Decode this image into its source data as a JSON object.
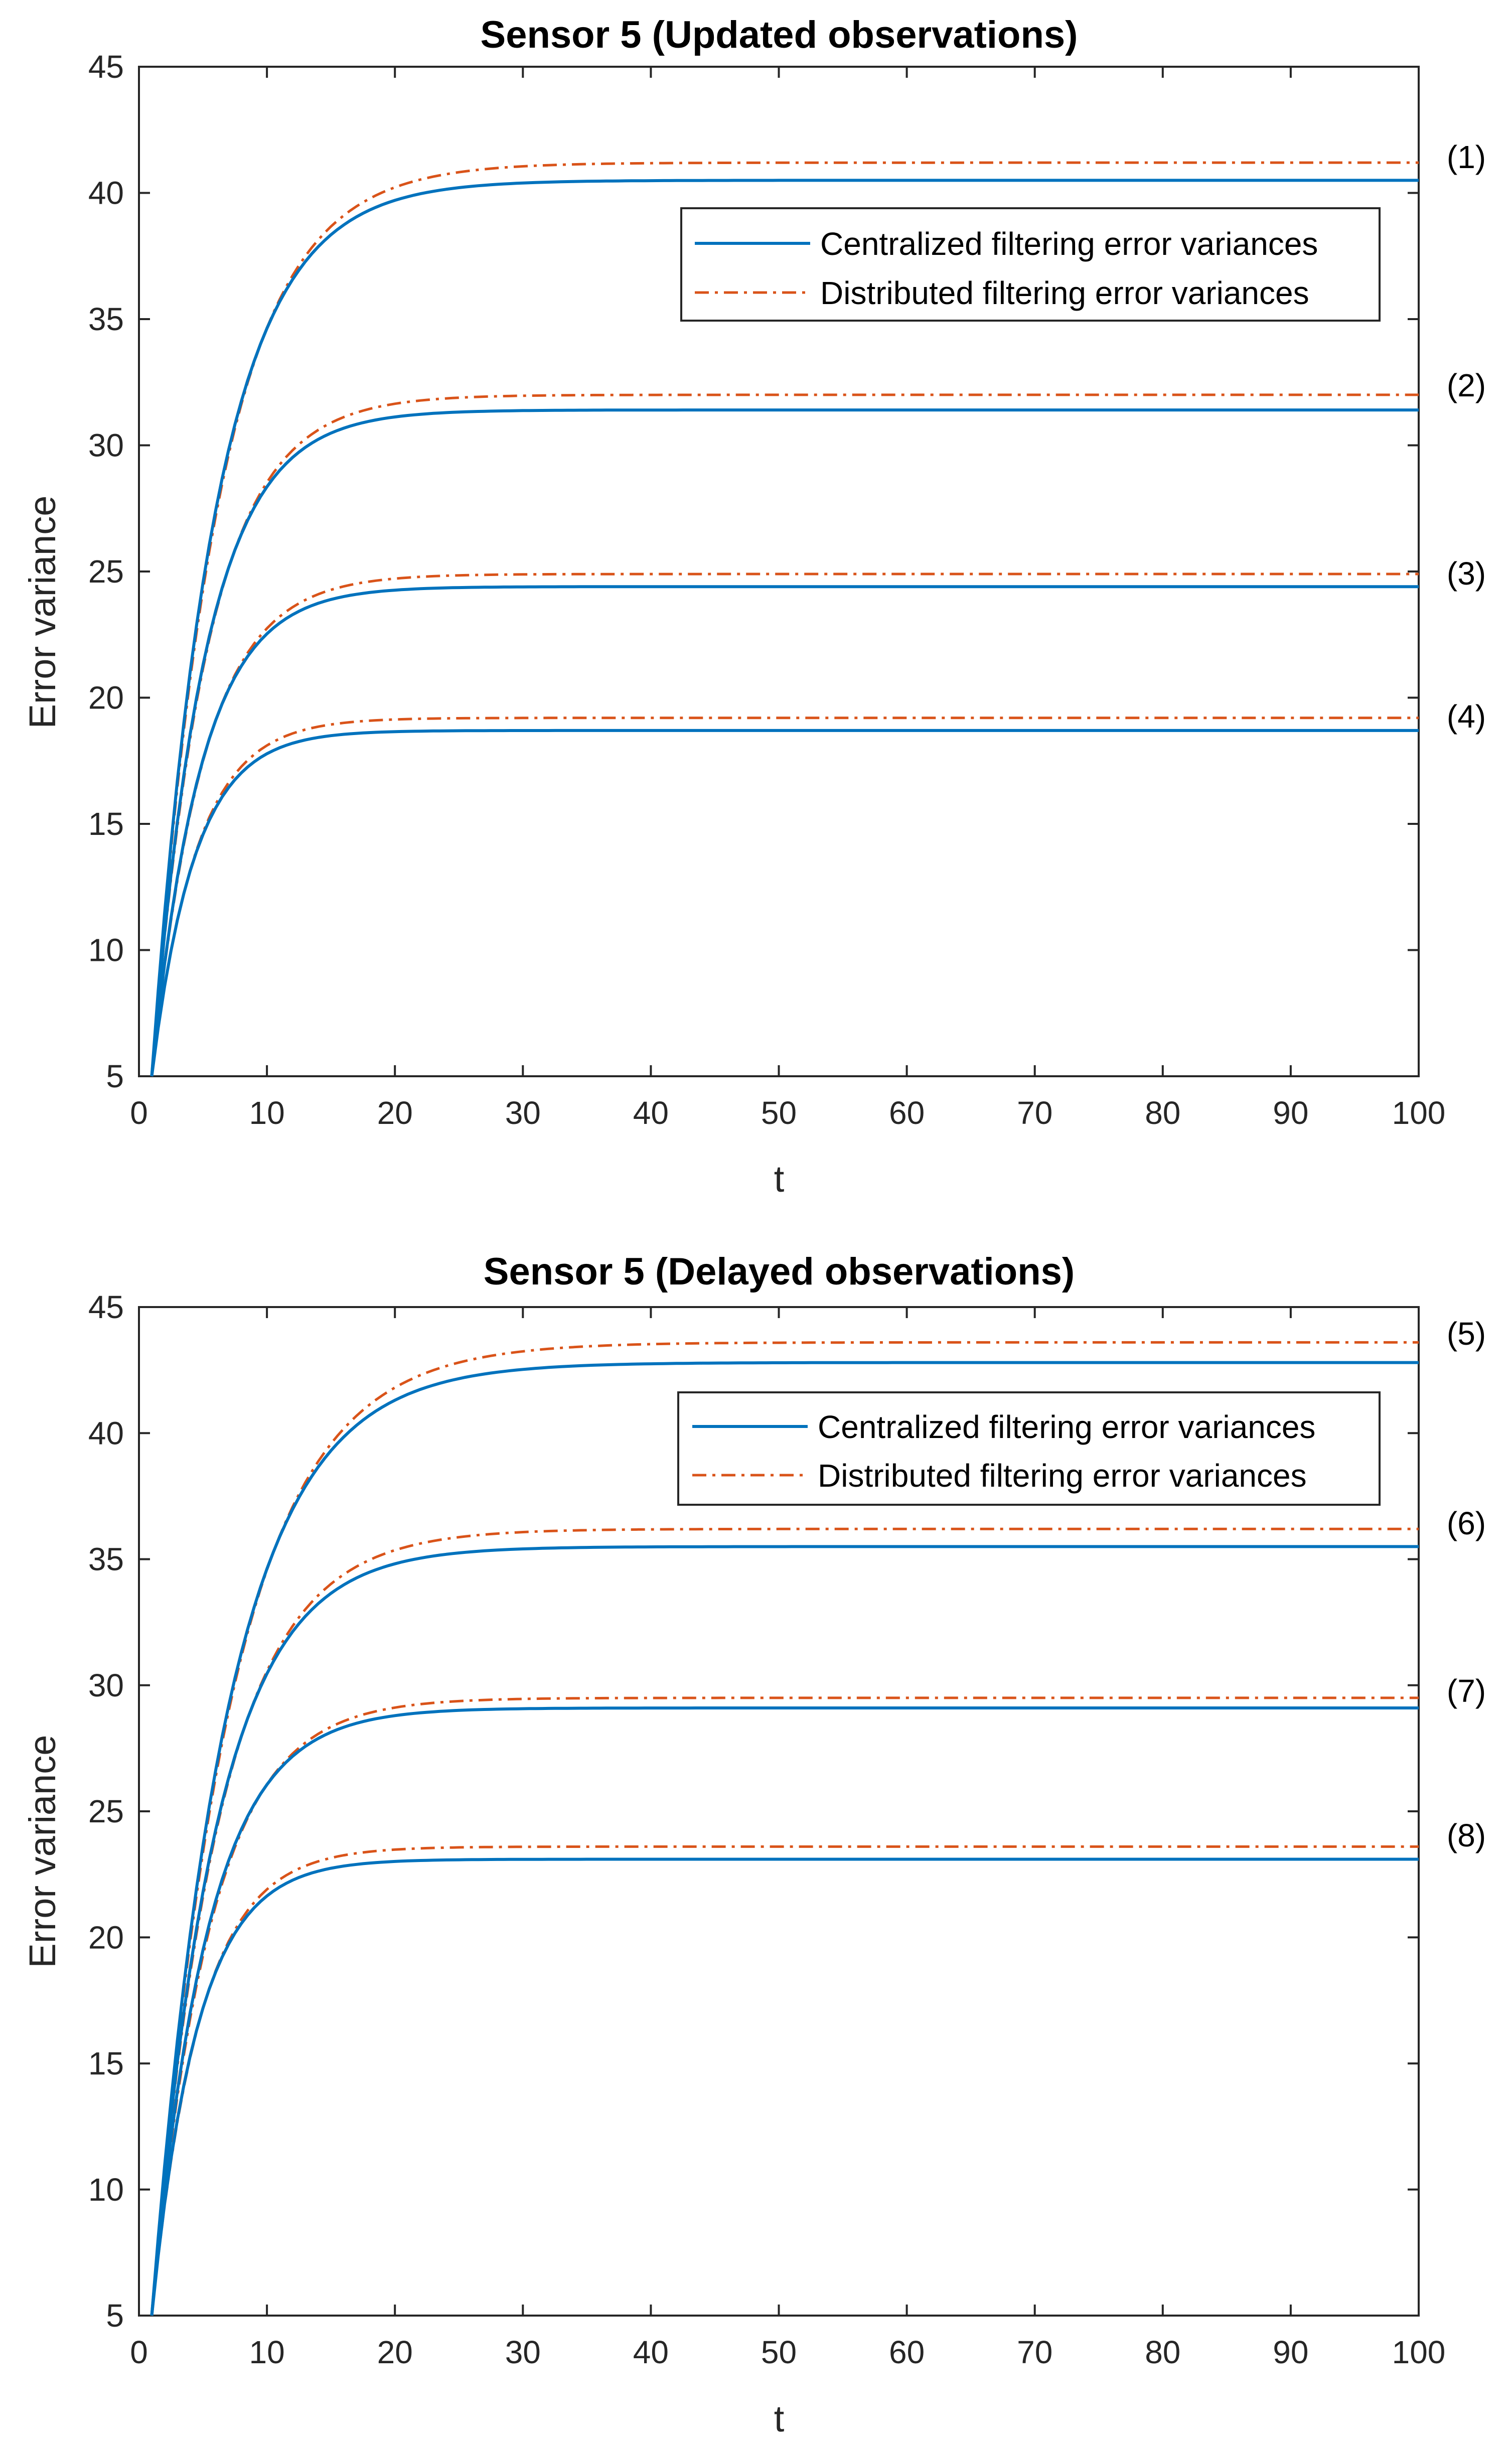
{
  "chart_data": [
    {
      "type": "line",
      "title": "Sensor 5 (Updated observations)",
      "xlabel": "t",
      "ylabel": "Error variance",
      "xlim": [
        0,
        100
      ],
      "ylim": [
        5,
        45
      ],
      "xticks": [
        0,
        10,
        20,
        30,
        40,
        50,
        60,
        70,
        80,
        90,
        100
      ],
      "yticks": [
        5,
        10,
        15,
        20,
        25,
        30,
        35,
        40,
        45
      ],
      "grid": false,
      "legend_position": "top-right",
      "legend": [
        {
          "label": "Centralized filtering error variances",
          "color": "#0072BD",
          "style": "solid"
        },
        {
          "label": "Distributed filtering error variances",
          "color": "#D95319",
          "style": "dash-dot"
        }
      ],
      "curves": [
        {
          "label": "(1)",
          "start": [
            1,
            5
          ],
          "centralized_final": 40.5,
          "distributed_final": 41.2,
          "rate": 0.2
        },
        {
          "label": "(2)",
          "start": [
            1,
            5
          ],
          "centralized_final": 31.4,
          "distributed_final": 32.0,
          "rate": 0.24
        },
        {
          "label": "(3)",
          "start": [
            1,
            5
          ],
          "centralized_final": 24.4,
          "distributed_final": 24.9,
          "rate": 0.26
        },
        {
          "label": "(4)",
          "start": [
            1,
            5
          ],
          "centralized_final": 18.7,
          "distributed_final": 19.2,
          "rate": 0.3
        }
      ]
    },
    {
      "type": "line",
      "title": "Sensor 5 (Delayed observations)",
      "xlabel": "t",
      "ylabel": "Error variance",
      "xlim": [
        0,
        100
      ],
      "ylim": [
        5,
        45
      ],
      "xticks": [
        0,
        10,
        20,
        30,
        40,
        50,
        60,
        70,
        80,
        90,
        100
      ],
      "yticks": [
        5,
        10,
        15,
        20,
        25,
        30,
        35,
        40,
        45
      ],
      "grid": false,
      "legend_position": "top-right",
      "legend": [
        {
          "label": "Centralized filtering error variances",
          "color": "#0072BD",
          "style": "solid"
        },
        {
          "label": "Distributed filtering error variances",
          "color": "#D95319",
          "style": "dash-dot"
        }
      ],
      "curves": [
        {
          "label": "(5)",
          "start": [
            1,
            5
          ],
          "centralized_final": 42.8,
          "distributed_final": 43.6,
          "rate": 0.17
        },
        {
          "label": "(6)",
          "start": [
            1,
            5
          ],
          "centralized_final": 35.5,
          "distributed_final": 36.2,
          "rate": 0.2
        },
        {
          "label": "(7)",
          "start": [
            1,
            5
          ],
          "centralized_final": 29.1,
          "distributed_final": 29.5,
          "rate": 0.23
        },
        {
          "label": "(8)",
          "start": [
            1,
            5
          ],
          "centralized_final": 23.1,
          "distributed_final": 23.6,
          "rate": 0.28
        }
      ]
    }
  ]
}
